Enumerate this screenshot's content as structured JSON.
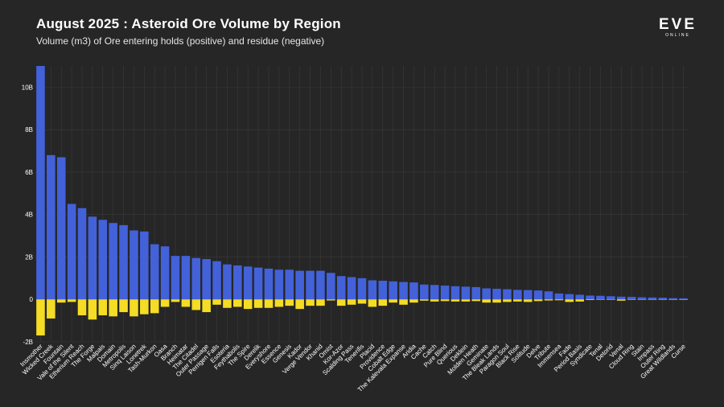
{
  "header": {
    "title": "August 2025 : Asteroid Ore Volume by Region",
    "subtitle": "Volume (m3) of Ore entering holds (positive) and residue (negative)"
  },
  "logo": {
    "mark": "EVE",
    "sub": "ONLINE"
  },
  "colors": {
    "positive": "#4361d8",
    "negative": "#f5dc25",
    "background": "#262626",
    "grid": "#3a3a3a"
  },
  "chart_data": {
    "type": "bar",
    "title": "August 2025 : Asteroid Ore Volume by Region",
    "subtitle": "Volume (m3) of Ore entering holds (positive) and residue (negative)",
    "ylim": [
      -2,
      11
    ],
    "yticks": [
      "-2B",
      "0",
      "2B",
      "4B",
      "6B",
      "8B",
      "10B"
    ],
    "ytick_values": [
      -2,
      0,
      2,
      4,
      6,
      8,
      10
    ],
    "grid": true,
    "unit": "billion m3",
    "categories": [
      "Insmother",
      "Wicked Creek",
      "Fountain",
      "Vale of the Silent",
      "Etherium Reach",
      "The Forge",
      "Malpais",
      "Domain",
      "Metropolis",
      "Sinq Laison",
      "Lonetrek",
      "Tash-Murkon",
      "Oasa",
      "Branch",
      "Heimatar",
      "The Citadel",
      "Outer Passage",
      "Perrigen Falls",
      "Esoteria",
      "Feythabolis",
      "The Spire",
      "Derelik",
      "Everyshore",
      "Essence",
      "Genesis",
      "Kador",
      "Verge Vendor",
      "Khanid",
      "Omist",
      "Kor-Azor",
      "Scalding Pass",
      "Tenerifis",
      "Placid",
      "Providence",
      "Cobalt Edge",
      "The Kalevala Expanse",
      "Aridia",
      "Cache",
      "Catch",
      "Pure Blind",
      "Querious",
      "Deklein",
      "Molden Heath",
      "Geminate",
      "The Bleak Lands",
      "Paragon Soul",
      "Black Rise",
      "Solitude",
      "Delve",
      "Tribute",
      "Immensea",
      "Fade",
      "Period Basis",
      "Syndicate",
      "Tenal",
      "Detorid",
      "Venal",
      "Cloud Ring",
      "Stain",
      "Impass",
      "Outer Ring",
      "Great Wildlands",
      "Curse"
    ],
    "series": [
      {
        "name": "positive",
        "color": "#4361d8",
        "values": [
          11.0,
          6.8,
          6.7,
          4.5,
          4.3,
          3.9,
          3.75,
          3.6,
          3.5,
          3.25,
          3.2,
          2.6,
          2.5,
          2.05,
          2.05,
          1.95,
          1.9,
          1.8,
          1.65,
          1.6,
          1.55,
          1.5,
          1.45,
          1.4,
          1.4,
          1.35,
          1.35,
          1.35,
          1.25,
          1.1,
          1.05,
          1.0,
          0.9,
          0.88,
          0.85,
          0.82,
          0.8,
          0.7,
          0.68,
          0.65,
          0.62,
          0.6,
          0.58,
          0.52,
          0.5,
          0.48,
          0.45,
          0.44,
          0.42,
          0.38,
          0.28,
          0.25,
          0.22,
          0.18,
          0.17,
          0.15,
          0.13,
          0.12,
          0.1,
          0.09,
          0.08,
          0.06,
          0.05
        ]
      },
      {
        "name": "negative",
        "color": "#f5dc25",
        "values": [
          -1.7,
          -0.9,
          -0.15,
          -0.12,
          -0.75,
          -0.95,
          -0.75,
          -0.8,
          -0.6,
          -0.8,
          -0.7,
          -0.65,
          -0.35,
          -0.12,
          -0.35,
          -0.5,
          -0.6,
          -0.25,
          -0.4,
          -0.35,
          -0.45,
          -0.4,
          -0.4,
          -0.35,
          -0.3,
          -0.45,
          -0.3,
          -0.3,
          -0.05,
          -0.3,
          -0.25,
          -0.2,
          -0.35,
          -0.3,
          -0.15,
          -0.25,
          -0.15,
          -0.06,
          -0.1,
          -0.08,
          -0.1,
          -0.1,
          -0.08,
          -0.15,
          -0.15,
          -0.12,
          -0.1,
          -0.12,
          -0.08,
          -0.05,
          -0.04,
          -0.12,
          -0.1,
          -0.03,
          -0.02,
          -0.02,
          -0.06,
          -0.02,
          -0.01,
          -0.01,
          -0.01,
          -0.01,
          -0.01
        ]
      }
    ]
  }
}
